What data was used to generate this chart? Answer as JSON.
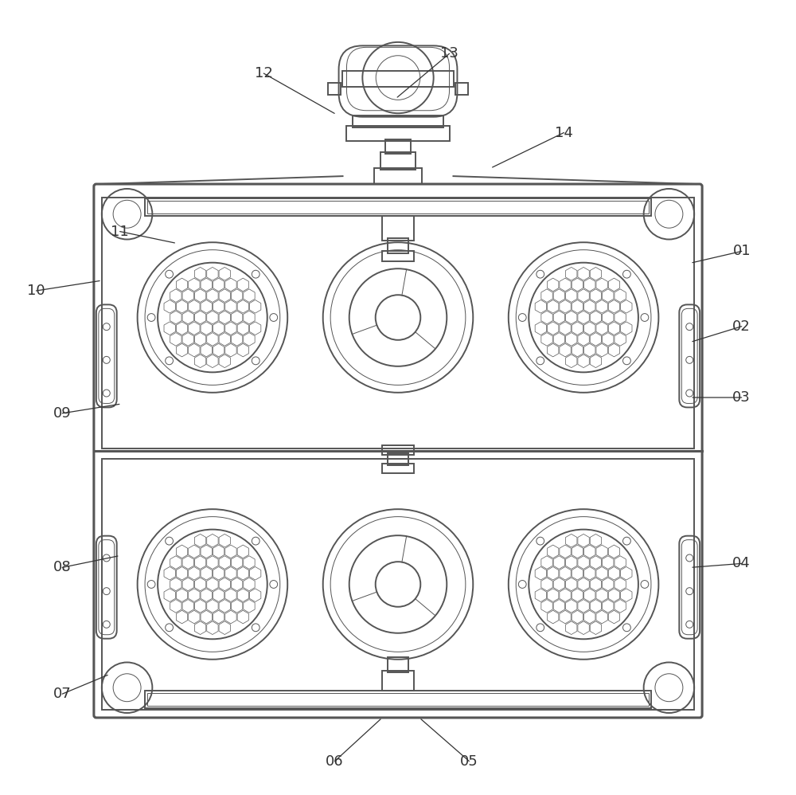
{
  "bg_color": "#ffffff",
  "line_color": "#555555",
  "lw_main": 1.4,
  "lw_thin": 0.7,
  "lw_thick": 2.2,
  "fig_width": 10.0,
  "fig_height": 9.98,
  "arrow_configs": {
    "01": {
      "lp": [
        0.935,
        0.685
      ],
      "ae": [
        0.87,
        0.67
      ]
    },
    "02": {
      "lp": [
        0.935,
        0.59
      ],
      "ae": [
        0.87,
        0.57
      ]
    },
    "03": {
      "lp": [
        0.935,
        0.5
      ],
      "ae": [
        0.87,
        0.5
      ]
    },
    "04": {
      "lp": [
        0.935,
        0.29
      ],
      "ae": [
        0.87,
        0.285
      ]
    },
    "05": {
      "lp": [
        0.59,
        0.04
      ],
      "ae": [
        0.527,
        0.095
      ]
    },
    "06": {
      "lp": [
        0.42,
        0.04
      ],
      "ae": [
        0.48,
        0.095
      ]
    },
    "07": {
      "lp": [
        0.075,
        0.125
      ],
      "ae": [
        0.135,
        0.15
      ]
    },
    "08": {
      "lp": [
        0.075,
        0.285
      ],
      "ae": [
        0.148,
        0.3
      ]
    },
    "09": {
      "lp": [
        0.075,
        0.48
      ],
      "ae": [
        0.15,
        0.492
      ]
    },
    "10": {
      "lp": [
        0.042,
        0.635
      ],
      "ae": [
        0.125,
        0.648
      ]
    },
    "11": {
      "lp": [
        0.148,
        0.71
      ],
      "ae": [
        0.22,
        0.695
      ]
    },
    "12": {
      "lp": [
        0.33,
        0.91
      ],
      "ae": [
        0.422,
        0.858
      ]
    },
    "13": {
      "lp": [
        0.565,
        0.935
      ],
      "ae": [
        0.497,
        0.878
      ]
    },
    "14": {
      "lp": [
        0.71,
        0.835
      ],
      "ae": [
        0.617,
        0.79
      ]
    }
  }
}
